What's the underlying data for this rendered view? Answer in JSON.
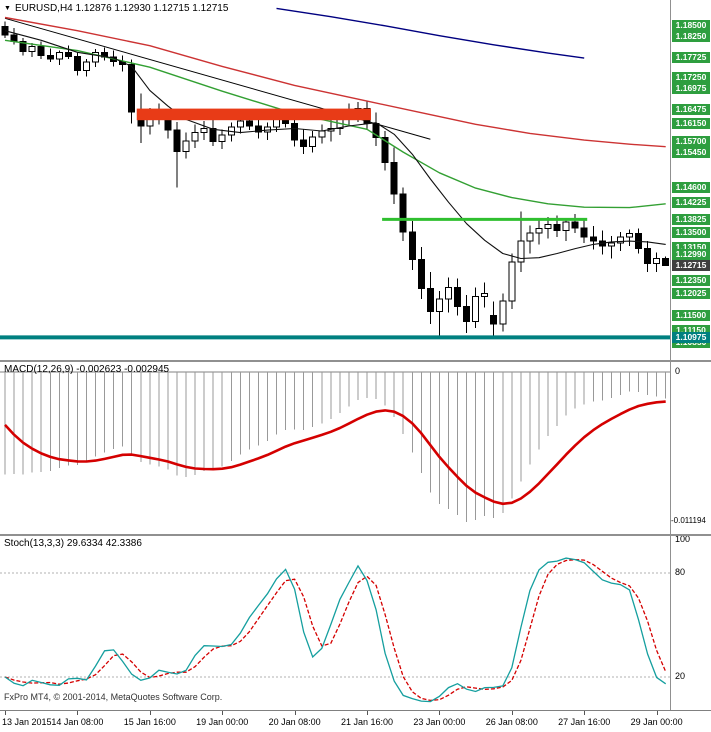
{
  "window": {
    "menu_marker": "▼",
    "title": "EURUSD,H4 1.12876 1.12930 1.12715 1.12715"
  },
  "panels": {
    "macd": {
      "label": "MACD(12,26,9) -0.002623 -0.002945",
      "scale_top": "0",
      "scale_bottom": "-0.011194"
    },
    "stoch": {
      "label": "Stoch(13,3,3) 29.6334 42.3386",
      "scale_100": "100",
      "scale_80": "80",
      "scale_20": "20"
    },
    "footer": "FxPro MT4, © 2001-2014, MetaQuotes Software Corp."
  },
  "chart_data": [
    {
      "type": "candlestick",
      "symbol": "EURUSD",
      "timeframe": "H4",
      "current_bar_ohlc": {
        "open": 1.12876,
        "high": 1.1293,
        "low": 1.12715,
        "close": 1.12715
      },
      "ylim": [
        1.1055,
        1.1905
      ],
      "x_tick_step": 8,
      "x_tick_labels": [
        "13 Jan 2015",
        "14 Jan 08:00",
        "15 Jan 16:00",
        "19 Jan 00:00",
        "20 Jan 08:00",
        "21 Jan 16:00",
        "23 Jan 00:00",
        "26 Jan 08:00",
        "27 Jan 16:00",
        "29 Jan 00:00"
      ],
      "candles": [
        [
          1.1848,
          1.186,
          1.182,
          1.1828
        ],
        [
          1.1828,
          1.1845,
          1.1805,
          1.1812
        ],
        [
          1.1812,
          1.182,
          1.1778,
          1.1788
        ],
        [
          1.1788,
          1.1808,
          1.1775,
          1.18
        ],
        [
          1.18,
          1.1812,
          1.177,
          1.1778
        ],
        [
          1.1778,
          1.1795,
          1.1762,
          1.177
        ],
        [
          1.177,
          1.179,
          1.1755,
          1.1785
        ],
        [
          1.1785,
          1.1802,
          1.177,
          1.1776
        ],
        [
          1.1776,
          1.1786,
          1.173,
          1.1742
        ],
        [
          1.1742,
          1.177,
          1.1728,
          1.1762
        ],
        [
          1.1762,
          1.1794,
          1.175,
          1.1786
        ],
        [
          1.1786,
          1.1798,
          1.1766,
          1.1775
        ],
        [
          1.1775,
          1.179,
          1.1752,
          1.1764
        ],
        [
          1.1764,
          1.1778,
          1.174,
          1.1756
        ],
        [
          1.1756,
          1.1768,
          1.1614,
          1.1642
        ],
        [
          1.1642,
          1.1686,
          1.1567,
          1.1608
        ],
        [
          1.1608,
          1.1652,
          1.1588,
          1.1636
        ],
        [
          1.1636,
          1.1662,
          1.1612,
          1.163
        ],
        [
          1.163,
          1.1642,
          1.1578,
          1.1598
        ],
        [
          1.1598,
          1.1618,
          1.146,
          1.1546
        ],
        [
          1.1546,
          1.1592,
          1.153,
          1.1572
        ],
        [
          1.1572,
          1.1612,
          1.1555,
          1.1592
        ],
        [
          1.1592,
          1.162,
          1.1574,
          1.1602
        ],
        [
          1.1602,
          1.1625,
          1.156,
          1.157
        ],
        [
          1.157,
          1.16,
          1.1552,
          1.1586
        ],
        [
          1.1586,
          1.1616,
          1.157,
          1.1605
        ],
        [
          1.1605,
          1.1632,
          1.159,
          1.162
        ],
        [
          1.162,
          1.164,
          1.1598,
          1.1608
        ],
        [
          1.1608,
          1.1624,
          1.1578,
          1.1594
        ],
        [
          1.1594,
          1.1616,
          1.1574,
          1.1606
        ],
        [
          1.1606,
          1.164,
          1.1594,
          1.1626
        ],
        [
          1.1626,
          1.1646,
          1.1604,
          1.1614
        ],
        [
          1.1614,
          1.163,
          1.1558,
          1.1574
        ],
        [
          1.1574,
          1.16,
          1.154,
          1.1558
        ],
        [
          1.1558,
          1.1596,
          1.1544,
          1.1582
        ],
        [
          1.1582,
          1.1612,
          1.1566,
          1.1596
        ],
        [
          1.1596,
          1.1622,
          1.157,
          1.1602
        ],
        [
          1.1602,
          1.1642,
          1.1586,
          1.1628
        ],
        [
          1.1628,
          1.1662,
          1.161,
          1.164
        ],
        [
          1.164,
          1.1666,
          1.1618,
          1.165
        ],
        [
          1.165,
          1.1668,
          1.1598,
          1.1614
        ],
        [
          1.1614,
          1.164,
          1.156,
          1.158
        ],
        [
          1.158,
          1.1596,
          1.15,
          1.152
        ],
        [
          1.152,
          1.1556,
          1.142,
          1.1444
        ],
        [
          1.1444,
          1.146,
          1.133,
          1.1352
        ],
        [
          1.1352,
          1.1378,
          1.126,
          1.1286
        ],
        [
          1.1286,
          1.1316,
          1.119,
          1.1216
        ],
        [
          1.1216,
          1.1256,
          1.113,
          1.116
        ],
        [
          1.116,
          1.121,
          1.1102,
          1.119
        ],
        [
          1.119,
          1.1242,
          1.1158,
          1.1218
        ],
        [
          1.1218,
          1.124,
          1.115,
          1.1172
        ],
        [
          1.1172,
          1.12,
          1.1108,
          1.1136
        ],
        [
          1.1136,
          1.1218,
          1.112,
          1.1196
        ],
        [
          1.1196,
          1.123,
          1.117,
          1.1204
        ],
        [
          1.115,
          1.1184,
          1.1098,
          1.113
        ],
        [
          1.113,
          1.1204,
          1.1112,
          1.1186
        ],
        [
          1.1186,
          1.13,
          1.1166,
          1.128
        ],
        [
          1.128,
          1.1402,
          1.1255,
          1.133
        ],
        [
          1.133,
          1.1368,
          1.13,
          1.135
        ],
        [
          1.135,
          1.138,
          1.1322,
          1.136
        ],
        [
          1.136,
          1.1388,
          1.1336,
          1.137
        ],
        [
          1.137,
          1.1392,
          1.134,
          1.1356
        ],
        [
          1.1356,
          1.1386,
          1.133,
          1.1376
        ],
        [
          1.1376,
          1.1396,
          1.135,
          1.1362
        ],
        [
          1.1362,
          1.1384,
          1.1326,
          1.134
        ],
        [
          1.134,
          1.1366,
          1.131,
          1.133
        ],
        [
          1.133,
          1.1356,
          1.1298,
          1.1318
        ],
        [
          1.1318,
          1.1342,
          1.1288,
          1.1326
        ],
        [
          1.1326,
          1.1352,
          1.1306,
          1.134
        ],
        [
          1.134,
          1.1358,
          1.1318,
          1.1348
        ],
        [
          1.1348,
          1.136,
          1.13,
          1.1312
        ],
        [
          1.1312,
          1.133,
          1.1256,
          1.1276
        ],
        [
          1.1276,
          1.1302,
          1.1256,
          1.1288
        ],
        [
          1.12876,
          1.1293,
          1.12715,
          1.12715
        ]
      ],
      "overlays": {
        "black_ma_points": [
          [
            0,
            1.1838
          ],
          [
            4,
            1.1815
          ],
          [
            8,
            1.1786
          ],
          [
            12,
            1.1772
          ],
          [
            14,
            1.1752
          ],
          [
            16,
            1.1694
          ],
          [
            18,
            1.1656
          ],
          [
            20,
            1.1624
          ],
          [
            23,
            1.16
          ],
          [
            26,
            1.1592
          ],
          [
            29,
            1.1598
          ],
          [
            32,
            1.1602
          ],
          [
            35,
            1.1596
          ],
          [
            38,
            1.1608
          ],
          [
            41,
            1.1616
          ],
          [
            43,
            1.1588
          ],
          [
            45,
            1.154
          ],
          [
            47,
            1.148
          ],
          [
            49,
            1.1424
          ],
          [
            51,
            1.1372
          ],
          [
            53,
            1.1332
          ],
          [
            55,
            1.13
          ],
          [
            57,
            1.1288
          ],
          [
            59,
            1.129
          ],
          [
            61,
            1.13
          ],
          [
            63,
            1.1312
          ],
          [
            65,
            1.1322
          ],
          [
            67,
            1.1328
          ],
          [
            69,
            1.133
          ],
          [
            71,
            1.1328
          ],
          [
            73,
            1.1322
          ]
        ],
        "green_ma_points": [
          [
            0,
            1.1815
          ],
          [
            8,
            1.179
          ],
          [
            16,
            1.175
          ],
          [
            24,
            1.1692
          ],
          [
            32,
            1.1638
          ],
          [
            40,
            1.16
          ],
          [
            44,
            1.1545
          ],
          [
            48,
            1.1495
          ],
          [
            52,
            1.1458
          ],
          [
            56,
            1.1435
          ],
          [
            60,
            1.142
          ],
          [
            64,
            1.1412
          ],
          [
            69,
            1.1411
          ],
          [
            73,
            1.142
          ]
        ],
        "red_ma_points": [
          [
            0,
            1.187
          ],
          [
            8,
            1.1838
          ],
          [
            16,
            1.1802
          ],
          [
            24,
            1.1752
          ],
          [
            32,
            1.1706
          ],
          [
            40,
            1.1668
          ],
          [
            46,
            1.164
          ],
          [
            52,
            1.1612
          ],
          [
            58,
            1.159
          ],
          [
            64,
            1.1574
          ],
          [
            69,
            1.1564
          ],
          [
            73,
            1.1558
          ]
        ],
        "blue_ma_points": [
          [
            30,
            1.1892
          ],
          [
            36,
            1.1872
          ],
          [
            42,
            1.185
          ],
          [
            48,
            1.1826
          ],
          [
            54,
            1.1804
          ],
          [
            60,
            1.1784
          ],
          [
            64,
            1.1772
          ]
        ],
        "trendline": {
          "from": [
            0,
            1.1868
          ],
          "to": [
            47,
            1.1576
          ]
        }
      },
      "levels": {
        "resistance_zone": {
          "from_index": 15,
          "to_index": 40,
          "price_top": 1.165,
          "price_bottom": 1.1622
        },
        "support_line": {
          "from_index": 42,
          "to_index": 64,
          "price": 1.13825
        },
        "horizontal_level": {
          "price": 1.10975
        }
      },
      "price_scale_labels": [
        {
          "text": "1.18500",
          "price": 1.185,
          "variant": "level"
        },
        {
          "text": "1.18250",
          "price": 1.1825,
          "variant": "level"
        },
        {
          "text": "1.17725",
          "price": 1.17725,
          "variant": "level"
        },
        {
          "text": "1.17250",
          "price": 1.1725,
          "variant": "level"
        },
        {
          "text": "1.16975",
          "price": 1.16975,
          "variant": "level"
        },
        {
          "text": "1.16475",
          "price": 1.16475,
          "variant": "level"
        },
        {
          "text": "1.16150",
          "price": 1.1615,
          "variant": "level"
        },
        {
          "text": "1.15700",
          "price": 1.157,
          "variant": "level"
        },
        {
          "text": "1.15450",
          "price": 1.1545,
          "variant": "level"
        },
        {
          "text": "1.14600",
          "price": 1.146,
          "variant": "level"
        },
        {
          "text": "1.14225",
          "price": 1.14225,
          "variant": "level"
        },
        {
          "text": "1.13825",
          "price": 1.13825,
          "variant": "level"
        },
        {
          "text": "1.13500",
          "price": 1.135,
          "variant": "level"
        },
        {
          "text": "1.13150",
          "price": 1.1315,
          "variant": "level"
        },
        {
          "text": "1.12990",
          "price": 1.1299,
          "variant": "level"
        },
        {
          "text": "1.12350",
          "price": 1.1235,
          "variant": "level"
        },
        {
          "text": "1.12025",
          "price": 1.12025,
          "variant": "level"
        },
        {
          "text": "1.11500",
          "price": 1.115,
          "variant": "level"
        },
        {
          "text": "1.11150",
          "price": 1.1115,
          "variant": "level"
        },
        {
          "text": "1.10850",
          "price": 1.1085,
          "variant": "level"
        },
        {
          "text": "1.10975",
          "price": 1.10975,
          "variant": "teal"
        },
        {
          "text": "1.12715",
          "price": 1.12715,
          "variant": "current"
        }
      ],
      "colors": {
        "candle_up": "#ffffff",
        "candle_down": "#000000",
        "candle_outline": "#000000",
        "ma_black": "#101010",
        "ma_green": "#33a033",
        "ma_red": "#cc3333",
        "ma_blue": "#000080",
        "trendline": "#000000",
        "zone": "#e83b17",
        "support": "#2fbf2f",
        "teal": "#008080"
      }
    },
    {
      "type": "macd",
      "params": [
        12,
        26,
        9
      ],
      "displayed_values": [
        -0.002623,
        -0.002945
      ],
      "scale": {
        "top": 0,
        "bottom": -0.011194
      },
      "seeds": [
        0.007,
        0.016,
        -0.0035
      ],
      "histogram_color": "#999999",
      "signal_color": "#d40000"
    },
    {
      "type": "stochastic",
      "params": [
        13,
        3,
        3
      ],
      "displayed_values": [
        29.6334,
        42.3386
      ],
      "ylim": [
        0,
        100
      ],
      "gridlines": [
        80,
        20
      ],
      "main_color": "#159f9f",
      "signal_color": "#d40000"
    }
  ]
}
